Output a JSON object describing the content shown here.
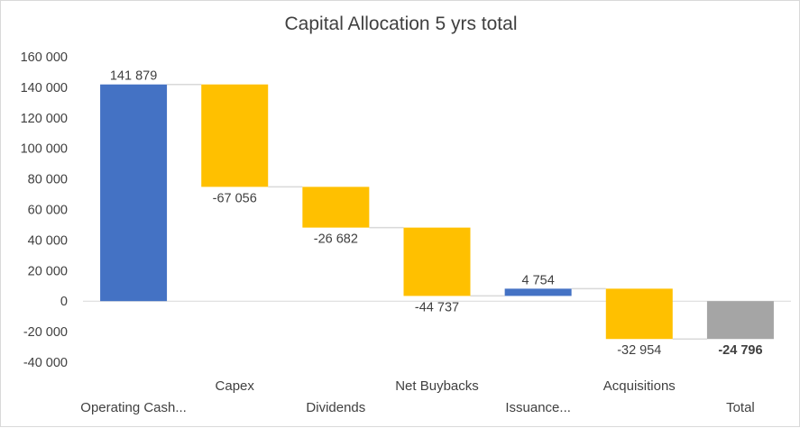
{
  "chart_data": {
    "type": "waterfall",
    "title": "Capital Allocation 5 yrs total",
    "xlabel": "",
    "ylabel": "",
    "ylim": [
      -40000,
      160000
    ],
    "yticks": [
      160000,
      140000,
      120000,
      100000,
      80000,
      60000,
      40000,
      20000,
      0,
      -20000,
      -40000
    ],
    "ytick_labels": [
      "160 000",
      "140 000",
      "120 000",
      "100 000",
      "80 000",
      "60 000",
      "40 000",
      "20 000",
      "0",
      "-20 000",
      "-40 000"
    ],
    "categories": [
      "Operating Cash...",
      "Capex",
      "Dividends",
      "Net Buybacks",
      "Issuance...",
      "Acquisitions",
      "Total"
    ],
    "values": [
      141879,
      -67056,
      -26682,
      -44737,
      4754,
      -32954,
      -24796
    ],
    "data_labels": [
      "141 879",
      "-67 056",
      "-26 682",
      "-44 737",
      "4 754",
      "-32 954",
      "-24 796"
    ],
    "is_total": [
      false,
      false,
      false,
      false,
      false,
      false,
      true
    ],
    "grid": false,
    "legend": "none",
    "colors": {
      "increase": "#4472c4",
      "decrease": "#ffc000",
      "total": "#a5a5a5",
      "connector": "#d9d9d9",
      "axis": "#d9d9d9",
      "text": "#404040"
    }
  }
}
